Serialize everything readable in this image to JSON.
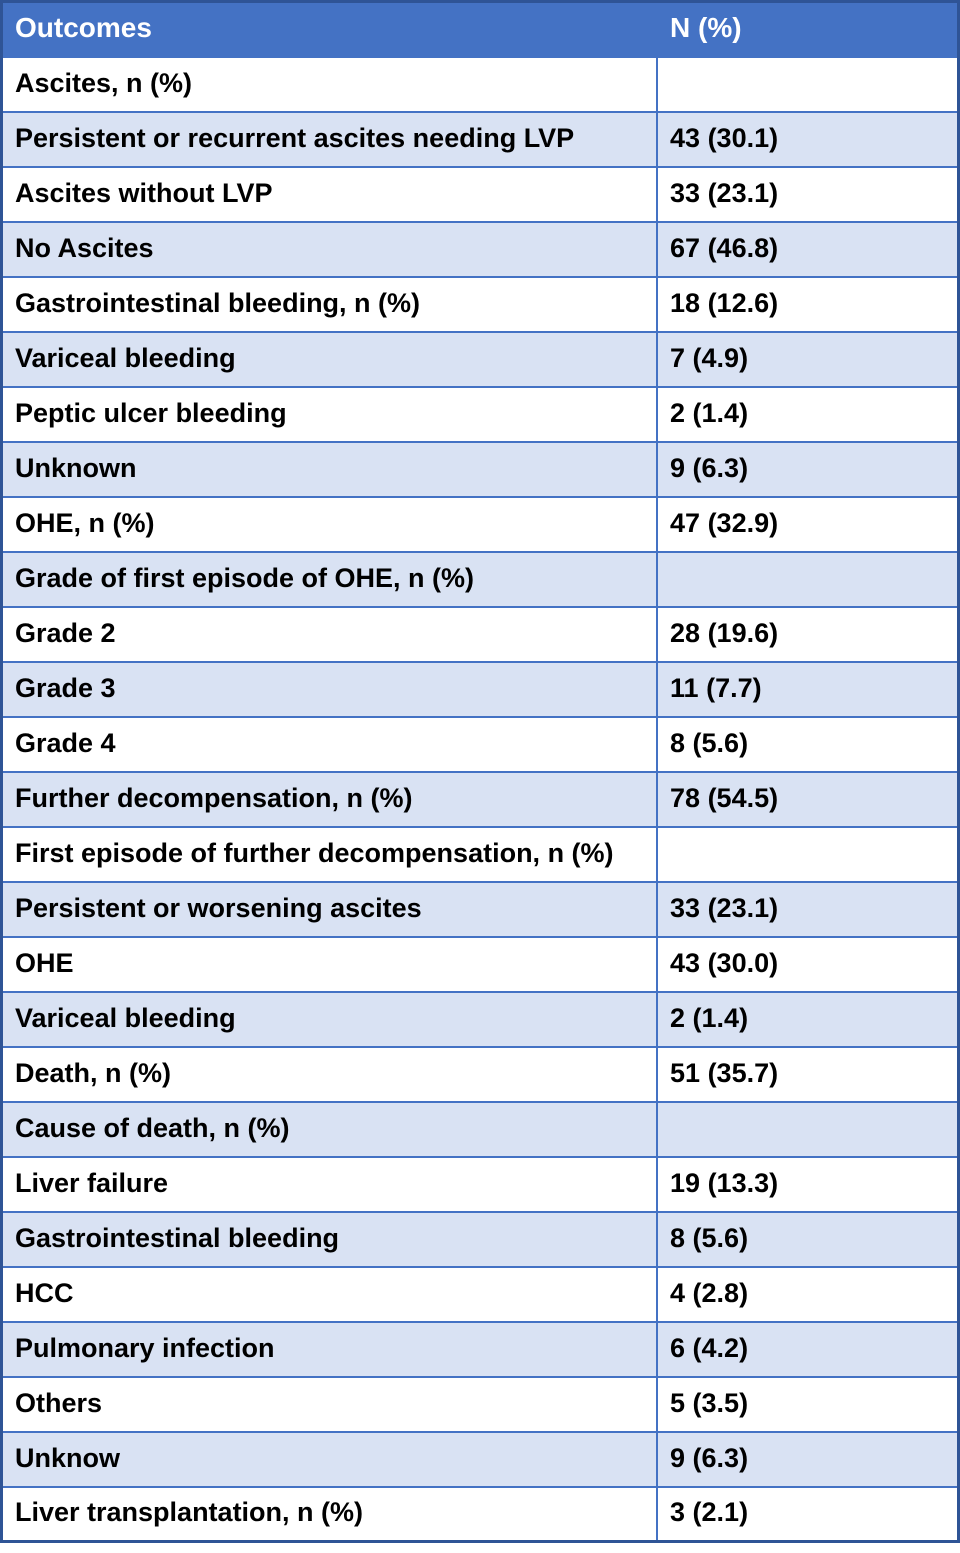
{
  "table": {
    "headers": [
      "Outcomes",
      "N (%)"
    ],
    "rows": [
      {
        "label": "Ascites, n (%)",
        "value": ""
      },
      {
        "label": "Persistent or recurrent ascites needing LVP",
        "value": "43 (30.1)"
      },
      {
        "label": "Ascites without LVP",
        "value": "33 (23.1)"
      },
      {
        "label": "No Ascites",
        "value": "67 (46.8)"
      },
      {
        "label": "Gastrointestinal bleeding, n (%)",
        "value": "18 (12.6)"
      },
      {
        "label": "Variceal bleeding",
        "value": "7 (4.9)"
      },
      {
        "label": "Peptic ulcer bleeding",
        "value": "2 (1.4)"
      },
      {
        "label": "Unknown",
        "value": "9 (6.3)"
      },
      {
        "label": "OHE, n (%)",
        "value": "47 (32.9)"
      },
      {
        "label": "Grade of first episode of OHE, n (%)",
        "value": ""
      },
      {
        "label": "Grade 2",
        "value": "28 (19.6)"
      },
      {
        "label": "Grade 3",
        "value": "11 (7.7)"
      },
      {
        "label": "Grade 4",
        "value": "8 (5.6)"
      },
      {
        "label": "Further decompensation, n (%)",
        "value": "78 (54.5)"
      },
      {
        "label": "First episode of further decompensation, n (%)",
        "value": ""
      },
      {
        "label": "Persistent or worsening ascites",
        "value": "33 (23.1)"
      },
      {
        "label": "OHE",
        "value": "43 (30.0)"
      },
      {
        "label": "Variceal bleeding",
        "value": "2 (1.4)"
      },
      {
        "label": "Death, n (%)",
        "value": "51 (35.7)"
      },
      {
        "label": "Cause of death, n (%)",
        "value": ""
      },
      {
        "label": "Liver failure",
        "value": "19 (13.3)"
      },
      {
        "label": "Gastrointestinal bleeding",
        "value": "8 (5.6)"
      },
      {
        "label": "HCC",
        "value": "4 (2.8)"
      },
      {
        "label": "Pulmonary infection",
        "value": "6 (4.2)"
      },
      {
        "label": "Others",
        "value": "5 (3.5)"
      },
      {
        "label": "Unknow",
        "value": "9 (6.3)"
      },
      {
        "label": "Liver transplantation, n (%)",
        "value": "3 (2.1)"
      }
    ],
    "colors": {
      "header_bg": "#4472C4",
      "header_text": "#FFFFFF",
      "row_bg": "#FFFFFF",
      "row_alt_bg": "#D9E2F3",
      "border": "#4472C4",
      "outer_border": "#2F5496",
      "text": "#000000"
    }
  }
}
